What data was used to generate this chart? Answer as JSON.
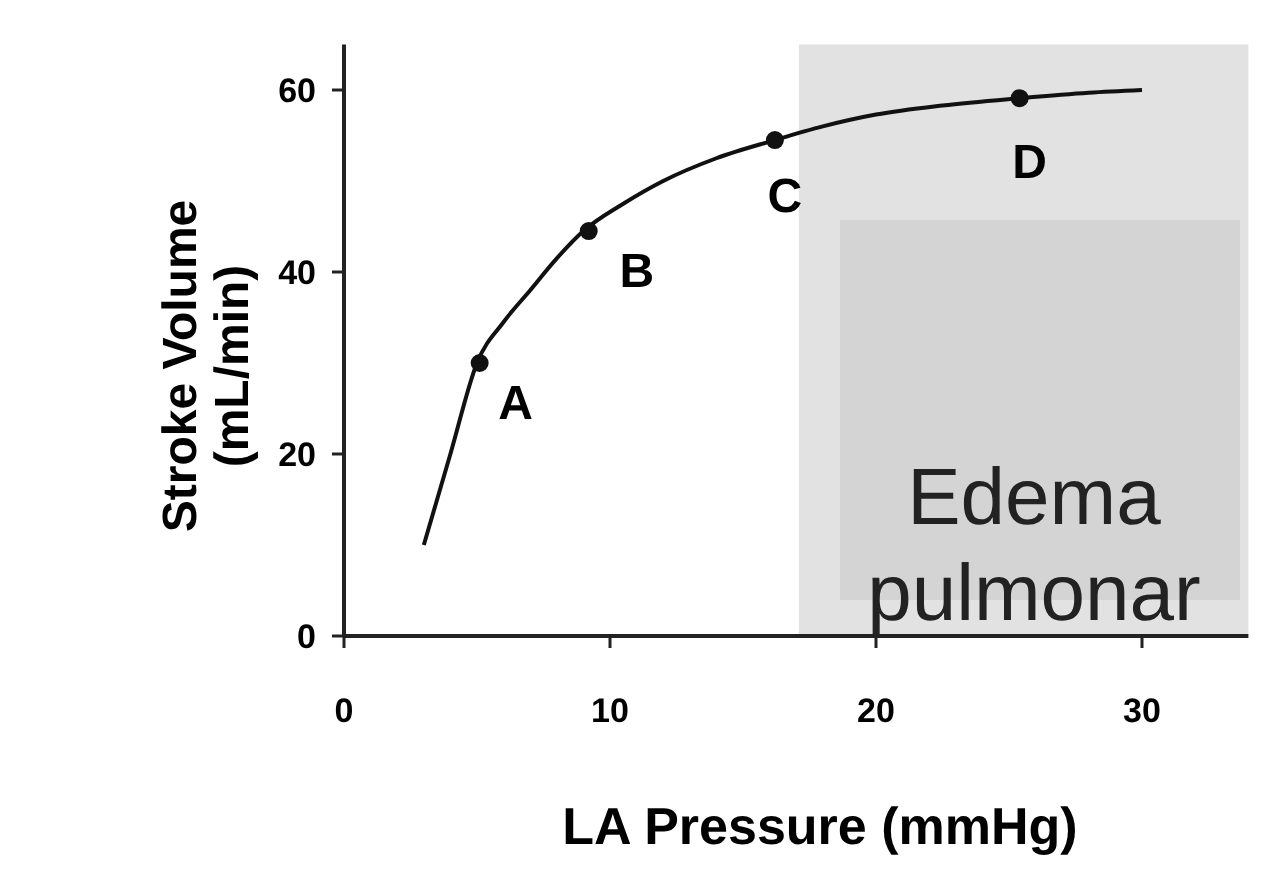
{
  "chart_data": {
    "type": "line",
    "xlabel": "LA Pressure (mmHg)",
    "ylabel": "Stroke Volume\n(mL/min)",
    "xlim": [
      0,
      34
    ],
    "ylim": [
      0,
      65
    ],
    "xticks": [
      0,
      10,
      20,
      30
    ],
    "yticks": [
      0,
      20,
      40,
      60
    ],
    "grid": false,
    "series": [
      {
        "color": "#111111",
        "marker": "none",
        "x": [
          3,
          4,
          5,
          6,
          7,
          8,
          9,
          10.5,
          12,
          14,
          16.2,
          18,
          20,
          22.5,
          25.4,
          28,
          30
        ],
        "values": [
          10,
          20,
          30,
          34.5,
          38,
          41.5,
          44.5,
          47.5,
          50,
          52.5,
          54.5,
          56,
          57.3,
          58.3,
          59.1,
          59.7,
          60
        ]
      },
      {
        "type": "scatter",
        "color": "#111111",
        "marker": "circle",
        "x": [
          5.1,
          9.2,
          16.2,
          25.4
        ],
        "values": [
          30,
          44.5,
          54.5,
          59.1
        ]
      }
    ],
    "bands": [
      {
        "axis": "x",
        "from": 17.1,
        "to": 34,
        "color": "#e2e2e2"
      }
    ],
    "annotations": [
      {
        "text": "A",
        "x": 5.1,
        "y": 30
      },
      {
        "text": "B",
        "x": 9.2,
        "y": 44.5
      },
      {
        "text": "C",
        "x": 16.2,
        "y": 54.5
      },
      {
        "text": "D",
        "x": 25.4,
        "y": 59.1
      },
      "Edema pulmonar"
    ]
  }
}
